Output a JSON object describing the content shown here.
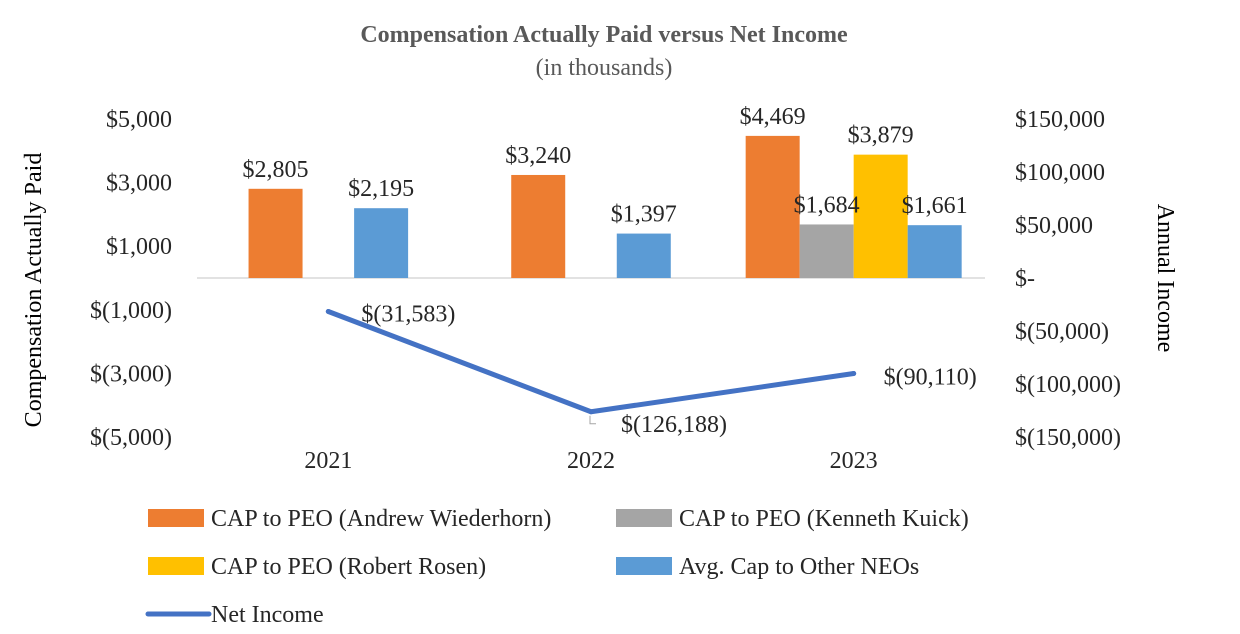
{
  "chart_data": {
    "type": "bar",
    "title": "Compensation Actually Paid versus Net Income",
    "subtitle": "(in thousands)",
    "categories": [
      "2021",
      "2022",
      "2023"
    ],
    "ylabel": "Compensation Actually Paid",
    "y2label": "Annual Income",
    "ylim": [
      -5000,
      5000
    ],
    "y2lim": [
      -150000,
      150000
    ],
    "y_ticks": [
      "$5,000",
      "$3,000",
      "$1,000",
      "$(1,000)",
      "$(3,000)",
      "$(5,000)"
    ],
    "y2_ticks": [
      "$150,000",
      "$100,000",
      "$50,000",
      "$-",
      "$(50,000)",
      "$(100,000)",
      "$(150,000)"
    ],
    "grid": false,
    "legend_position": "bottom",
    "series": [
      {
        "name": "CAP to PEO (Andrew Wiederhorn)",
        "type": "bar",
        "axis": "left",
        "color": "#ED7D31",
        "values": [
          2805,
          3240,
          4469
        ],
        "labels": [
          "$2,805",
          "$3,240",
          "$4,469"
        ]
      },
      {
        "name": "CAP to PEO (Kenneth Kuick)",
        "type": "bar",
        "axis": "left",
        "color": "#A5A5A5",
        "values": [
          null,
          null,
          1684
        ],
        "labels": [
          "",
          "",
          "$1,684"
        ]
      },
      {
        "name": "CAP to PEO (Robert Rosen)",
        "type": "bar",
        "axis": "left",
        "color": "#FFC000",
        "values": [
          null,
          null,
          3879
        ],
        "labels": [
          "",
          "",
          "$3,879"
        ]
      },
      {
        "name": "Avg. Cap to Other NEOs",
        "type": "bar",
        "axis": "left",
        "color": "#5B9BD5",
        "values": [
          2195,
          1397,
          1661
        ],
        "labels": [
          "$2,195",
          "$1,397",
          "$1,661"
        ]
      },
      {
        "name": "Net Income",
        "type": "line",
        "axis": "right",
        "color": "#4472C4",
        "values": [
          -31583,
          -126188,
          -90110
        ],
        "labels": [
          "$(31,583)",
          "$(126,188)",
          "$(90,110)"
        ]
      }
    ]
  }
}
